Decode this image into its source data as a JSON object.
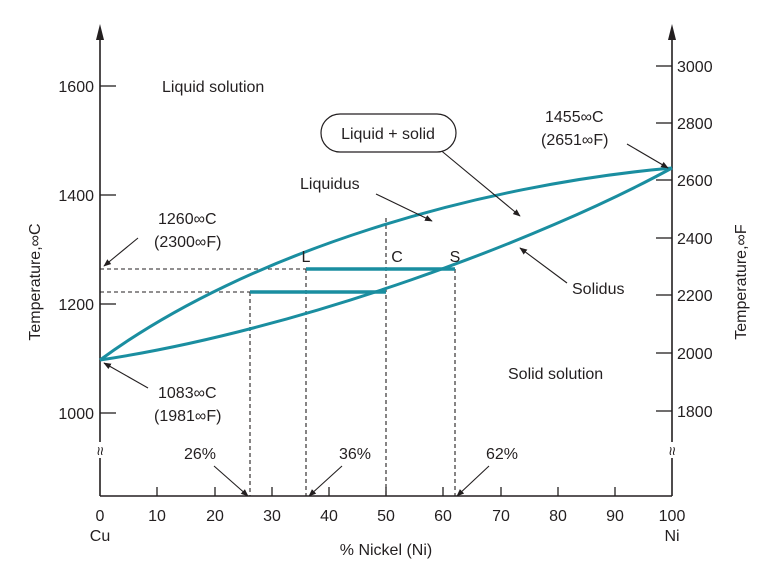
{
  "colors": {
    "curve": "#1a8ea0",
    "ink": "#231f20"
  },
  "x_axis": {
    "label": "% Nickel (Ni)",
    "ticks": [
      "0",
      "10",
      "20",
      "30",
      "40",
      "50",
      "60",
      "70",
      "80",
      "90",
      "100"
    ],
    "left_end": "Cu",
    "right_end": "Ni"
  },
  "y_left": {
    "label": "Temperature,∞C",
    "ticks": [
      "1000",
      "1200",
      "1400",
      "1600"
    ]
  },
  "y_right": {
    "label": "Temperature,∞F",
    "ticks": [
      "1800",
      "2000",
      "2200",
      "2400",
      "2600",
      "2800",
      "3000"
    ]
  },
  "regions": {
    "liquid": "Liquid solution",
    "two_phase": "Liquid + solid",
    "solid": "Solid solution"
  },
  "curves": {
    "liquidus": "Liquidus",
    "solidus": "Solidus"
  },
  "points": {
    "L": "L",
    "C": "C",
    "S": "S"
  },
  "annotations": {
    "ni_melt_c": "1455∞C",
    "ni_melt_f": "(2651∞F)",
    "tie_temp_c": "1260∞C",
    "tie_temp_f": "(2300∞F)",
    "cu_melt_c": "1083∞C",
    "cu_melt_f": "(1981∞F)",
    "pct_26": "26%",
    "pct_36": "36%",
    "pct_62": "62%"
  },
  "axis_break_symbol": "≈"
}
